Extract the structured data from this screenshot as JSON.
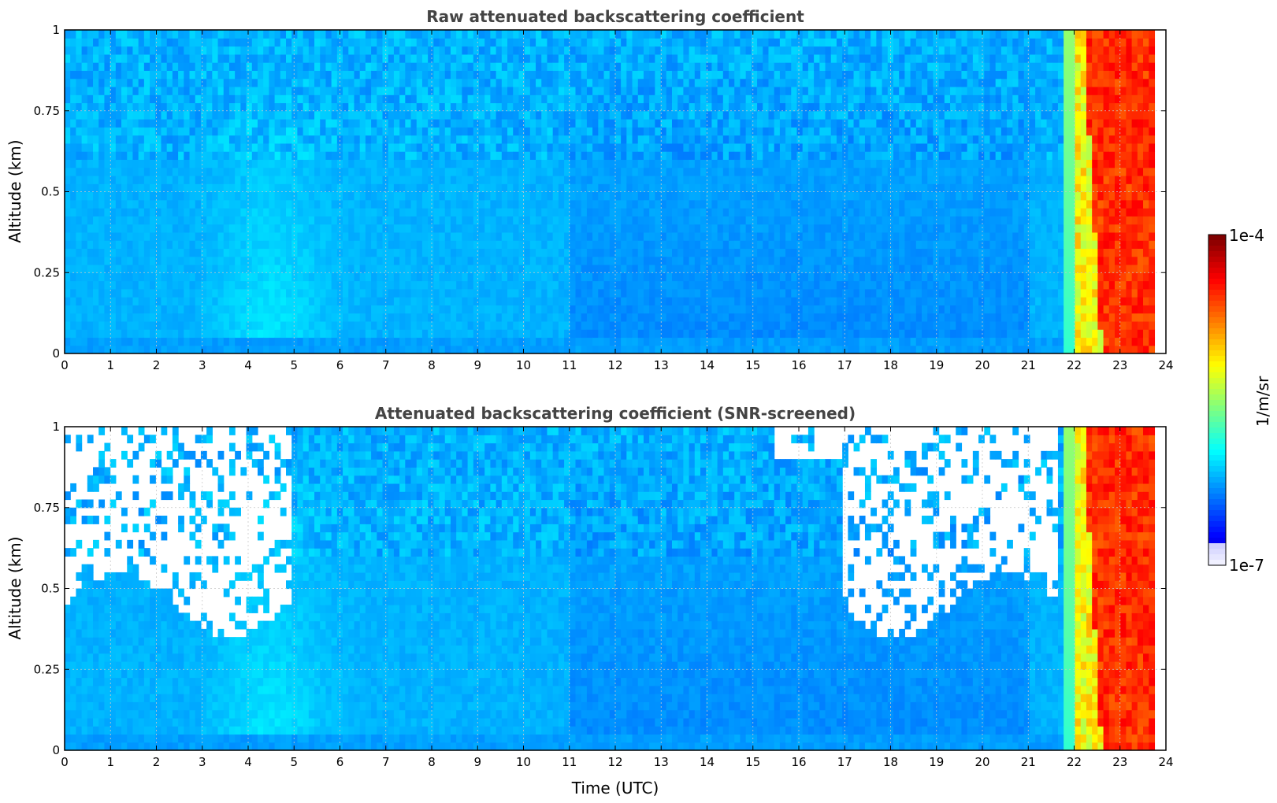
{
  "chart_data": [
    {
      "type": "heatmap",
      "title": "Raw attenuated backscattering coefficient",
      "xlabel": "",
      "ylabel": "Altitude (km)",
      "xlim": [
        0,
        24
      ],
      "ylim": [
        0,
        1
      ],
      "x_ticks": [
        "0",
        "1",
        "2",
        "3",
        "4",
        "5",
        "6",
        "7",
        "8",
        "9",
        "10",
        "11",
        "12",
        "13",
        "14",
        "15",
        "16",
        "17",
        "18",
        "19",
        "20",
        "21",
        "22",
        "23",
        "24"
      ],
      "y_ticks": [
        "0",
        "0.25",
        "0.5",
        "0.75",
        "1"
      ],
      "grid": true,
      "colorscale": "jet",
      "data_extent_x": [
        0,
        23.75
      ],
      "screened": false
    },
    {
      "type": "heatmap",
      "title": "Attenuated backscattering coefficient (SNR-screened)",
      "xlabel": "Time (UTC)",
      "ylabel": "Altitude (km)",
      "xlim": [
        0,
        24
      ],
      "ylim": [
        0,
        1
      ],
      "x_ticks": [
        "0",
        "1",
        "2",
        "3",
        "4",
        "5",
        "6",
        "7",
        "8",
        "9",
        "10",
        "11",
        "12",
        "13",
        "14",
        "15",
        "16",
        "17",
        "18",
        "19",
        "20",
        "21",
        "22",
        "23",
        "24"
      ],
      "y_ticks": [
        "0",
        "0.25",
        "0.5",
        "0.75",
        "1"
      ],
      "grid": true,
      "colorscale": "jet",
      "data_extent_x": [
        0,
        23.75
      ],
      "screened": true
    }
  ],
  "colorbar": {
    "max_label": "1e-4",
    "min_label": "1e-7",
    "unit_label": "1/m/sr",
    "colors": [
      "#7f0000",
      "#ff0000",
      "#ff8000",
      "#ffff00",
      "#80ff80",
      "#00ffff",
      "#0080ff",
      "#0000ff",
      "#e6e6ff"
    ]
  }
}
